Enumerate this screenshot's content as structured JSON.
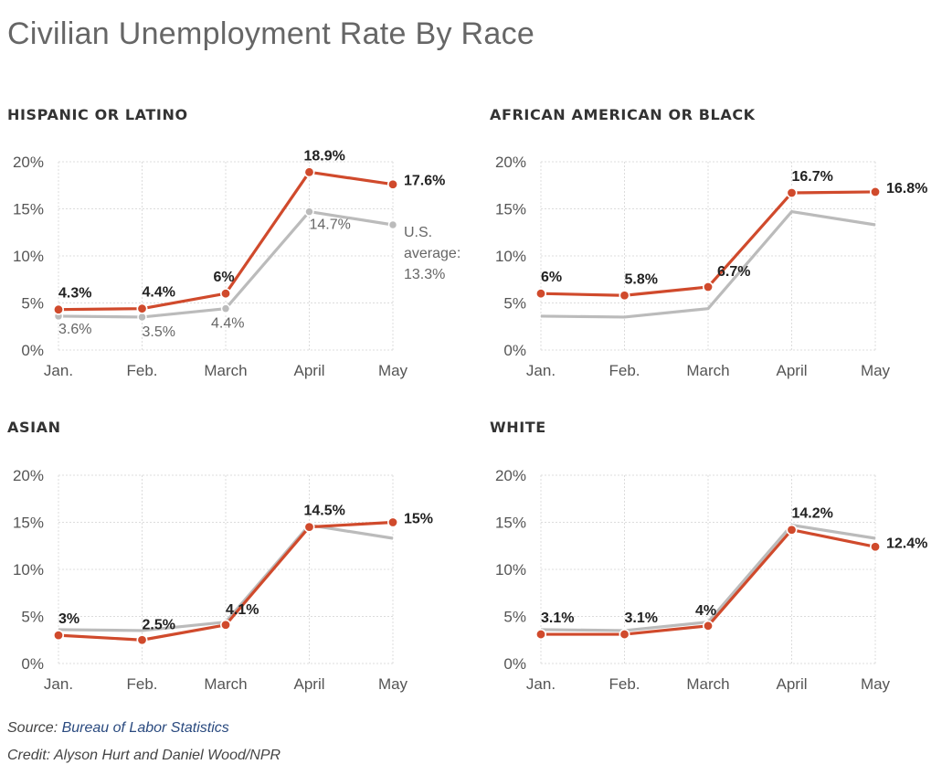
{
  "title": "Civilian Unemployment Rate By Race",
  "footer": {
    "source_label": "Source:",
    "source_link": "Bureau of Labor Statistics",
    "credit": "Credit: Alyson Hurt and Daniel Wood/NPR"
  },
  "colors": {
    "group": "#d04a2c",
    "average": "#bbbbbb",
    "grid": "#dcdcdc"
  },
  "chart_data": [
    {
      "type": "line",
      "title": "HISPANIC OR LATINO",
      "categories": [
        "Jan.",
        "Feb.",
        "March",
        "April",
        "May"
      ],
      "yticks": [
        "0%",
        "5%",
        "10%",
        "15%",
        "20%"
      ],
      "ylim": [
        0,
        20
      ],
      "series": [
        {
          "role": "group",
          "values": [
            4.3,
            4.4,
            6,
            18.9,
            17.6
          ],
          "labels": [
            "4.3%",
            "4.4%",
            "6%",
            "18.9%",
            "17.6%"
          ]
        },
        {
          "role": "average",
          "values": [
            3.6,
            3.5,
            4.4,
            14.7,
            13.3
          ],
          "labels": [
            "3.6%",
            "3.5%",
            "4.4%",
            "14.7%",
            "13.3%"
          ],
          "annotation": [
            "U.S.",
            "average:"
          ]
        }
      ]
    },
    {
      "type": "line",
      "title": "AFRICAN AMERICAN OR BLACK",
      "categories": [
        "Jan.",
        "Feb.",
        "March",
        "April",
        "May"
      ],
      "yticks": [
        "0%",
        "5%",
        "10%",
        "15%",
        "20%"
      ],
      "ylim": [
        0,
        20
      ],
      "series": [
        {
          "role": "group",
          "values": [
            6,
            5.8,
            6.7,
            16.7,
            16.8
          ],
          "labels": [
            "6%",
            "5.8%",
            "6.7%",
            "16.7%",
            "16.8%"
          ]
        },
        {
          "role": "average",
          "values": [
            3.6,
            3.5,
            4.4,
            14.7,
            13.3
          ]
        }
      ]
    },
    {
      "type": "line",
      "title": "ASIAN",
      "categories": [
        "Jan.",
        "Feb.",
        "March",
        "April",
        "May"
      ],
      "yticks": [
        "0%",
        "5%",
        "10%",
        "15%",
        "20%"
      ],
      "ylim": [
        0,
        20
      ],
      "series": [
        {
          "role": "group",
          "values": [
            3,
            2.5,
            4.1,
            14.5,
            15
          ],
          "labels": [
            "3%",
            "2.5%",
            "4.1%",
            "14.5%",
            "15%"
          ]
        },
        {
          "role": "average",
          "values": [
            3.6,
            3.5,
            4.4,
            14.7,
            13.3
          ]
        }
      ]
    },
    {
      "type": "line",
      "title": "WHITE",
      "categories": [
        "Jan.",
        "Feb.",
        "March",
        "April",
        "May"
      ],
      "yticks": [
        "0%",
        "5%",
        "10%",
        "15%",
        "20%"
      ],
      "ylim": [
        0,
        20
      ],
      "series": [
        {
          "role": "group",
          "values": [
            3.1,
            3.1,
            4,
            14.2,
            12.4
          ],
          "labels": [
            "3.1%",
            "3.1%",
            "4%",
            "14.2%",
            "12.4%"
          ]
        },
        {
          "role": "average",
          "values": [
            3.6,
            3.5,
            4.4,
            14.7,
            13.3
          ]
        }
      ]
    }
  ]
}
